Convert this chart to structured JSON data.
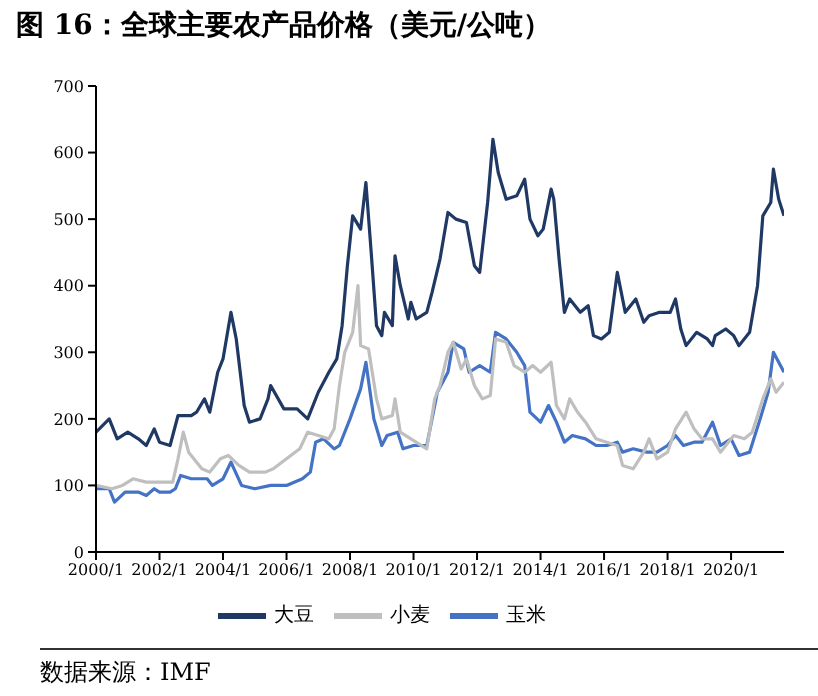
{
  "chart_data": {
    "type": "line",
    "title": "图 16：全球主要农产品价格（美元/公吨）",
    "annotations": [
      "数据来源：IMF"
    ],
    "xlim": [
      "2000-01",
      "2021-09"
    ],
    "xticks": [
      {
        "value": "2000-01",
        "label": "2000/1"
      },
      {
        "value": "2002-01",
        "label": "2002/1"
      },
      {
        "value": "2004-01",
        "label": "2004/1"
      },
      {
        "value": "2006-01",
        "label": "2006/1"
      },
      {
        "value": "2008-01",
        "label": "2008/1"
      },
      {
        "value": "2010-01",
        "label": "2010/1"
      },
      {
        "value": "2012-01",
        "label": "2012/1"
      },
      {
        "value": "2014-01",
        "label": "2014/1"
      },
      {
        "value": "2016-01",
        "label": "2016/1"
      },
      {
        "value": "2018-01",
        "label": "2018/1"
      },
      {
        "value": "2020-01",
        "label": "2020/1"
      }
    ],
    "ylim": [
      0,
      700
    ],
    "yticks": [
      0,
      100,
      200,
      300,
      400,
      500,
      600,
      700
    ],
    "grid": false,
    "legend": "bottom",
    "marker": "none",
    "line_style": "solid",
    "series": [
      {
        "name": "玉米",
        "color": "#4472c4",
        "x": [
          "2000-01",
          "2000-06",
          "2000-08",
          "2000-12",
          "2001-05",
          "2001-08",
          "2001-11",
          "2002-01",
          "2002-05",
          "2002-07",
          "2002-09",
          "2003-01",
          "2003-07",
          "2003-09",
          "2004-01",
          "2004-04",
          "2004-08",
          "2005-01",
          "2005-07",
          "2006-01",
          "2006-07",
          "2006-10",
          "2006-12",
          "2007-03",
          "2007-07",
          "2007-09",
          "2008-01",
          "2008-05",
          "2008-07",
          "2008-10",
          "2009-01",
          "2009-03",
          "2009-07",
          "2009-09",
          "2010-01",
          "2010-06",
          "2010-10",
          "2011-02",
          "2011-04",
          "2011-08",
          "2011-10",
          "2012-02",
          "2012-06",
          "2012-08",
          "2012-12",
          "2013-04",
          "2013-07",
          "2013-09",
          "2014-01",
          "2014-04",
          "2014-07",
          "2014-10",
          "2015-01",
          "2015-06",
          "2015-10",
          "2016-02",
          "2016-06",
          "2016-08",
          "2016-12",
          "2017-05",
          "2017-09",
          "2018-01",
          "2018-04",
          "2018-07",
          "2018-11",
          "2019-02",
          "2019-06",
          "2019-09",
          "2020-01",
          "2020-04",
          "2020-08",
          "2020-12",
          "2021-03",
          "2021-05",
          "2021-09"
        ],
        "values": [
          95,
          95,
          75,
          90,
          90,
          85,
          95,
          90,
          90,
          95,
          115,
          110,
          110,
          100,
          110,
          135,
          100,
          95,
          100,
          100,
          110,
          120,
          165,
          170,
          155,
          160,
          200,
          245,
          285,
          200,
          160,
          175,
          180,
          155,
          160,
          160,
          240,
          270,
          315,
          305,
          270,
          280,
          270,
          330,
          320,
          300,
          280,
          210,
          195,
          220,
          195,
          165,
          175,
          170,
          160,
          160,
          165,
          150,
          155,
          150,
          150,
          160,
          175,
          160,
          165,
          165,
          195,
          160,
          170,
          145,
          150,
          200,
          240,
          300,
          270
        ]
      },
      {
        "name": "大豆",
        "color": "#1f3864",
        "x": [
          "2000-01",
          "2000-06",
          "2000-09",
          "2001-01",
          "2001-05",
          "2001-08",
          "2001-11",
          "2002-01",
          "2002-05",
          "2002-08",
          "2003-01",
          "2003-03",
          "2003-06",
          "2003-08",
          "2003-11",
          "2004-01",
          "2004-04",
          "2004-06",
          "2004-09",
          "2004-11",
          "2005-03",
          "2005-06",
          "2005-07",
          "2005-12",
          "2006-05",
          "2006-09",
          "2007-01",
          "2007-05",
          "2007-08",
          "2007-10",
          "2007-12",
          "2008-02",
          "2008-05",
          "2008-07",
          "2008-09",
          "2008-11",
          "2009-01",
          "2009-02",
          "2009-05",
          "2009-06",
          "2009-08",
          "2009-11",
          "2009-12",
          "2010-02",
          "2010-06",
          "2010-08",
          "2010-11",
          "2011-02",
          "2011-05",
          "2011-09",
          "2011-12",
          "2012-02",
          "2012-05",
          "2012-07",
          "2012-09",
          "2012-12",
          "2013-04",
          "2013-07",
          "2013-09",
          "2013-12",
          "2014-02",
          "2014-05",
          "2014-06",
          "2014-08",
          "2014-10",
          "2014-12",
          "2015-04",
          "2015-07",
          "2015-09",
          "2015-12",
          "2016-03",
          "2016-06",
          "2016-09",
          "2017-01",
          "2017-04",
          "2017-06",
          "2017-10",
          "2018-02",
          "2018-04",
          "2018-06",
          "2018-08",
          "2018-12",
          "2019-04",
          "2019-06",
          "2019-07",
          "2019-11",
          "2020-02",
          "2020-04",
          "2020-08",
          "2020-11",
          "2021-01",
          "2021-04",
          "2021-05",
          "2021-07",
          "2021-09"
        ],
        "values": [
          180,
          200,
          170,
          180,
          170,
          160,
          185,
          165,
          160,
          205,
          205,
          210,
          230,
          210,
          270,
          290,
          360,
          320,
          220,
          195,
          200,
          230,
          250,
          215,
          215,
          200,
          240,
          270,
          290,
          340,
          430,
          505,
          485,
          555,
          450,
          340,
          325,
          360,
          340,
          445,
          400,
          350,
          375,
          350,
          360,
          390,
          440,
          510,
          500,
          495,
          430,
          420,
          525,
          620,
          570,
          530,
          535,
          560,
          500,
          475,
          485,
          545,
          530,
          440,
          360,
          380,
          360,
          370,
          325,
          320,
          330,
          420,
          360,
          380,
          345,
          355,
          360,
          360,
          380,
          335,
          310,
          330,
          320,
          310,
          325,
          335,
          325,
          310,
          330,
          400,
          505,
          525,
          575,
          530,
          505
        ]
      },
      {
        "name": "小麦",
        "color": "#bfbfbf",
        "x": [
          "2000-01",
          "2000-07",
          "2000-11",
          "2001-03",
          "2001-08",
          "2002-01",
          "2002-06",
          "2002-08",
          "2002-10",
          "2002-12",
          "2003-05",
          "2003-08",
          "2003-12",
          "2004-03",
          "2004-07",
          "2004-11",
          "2005-05",
          "2005-08",
          "2006-01",
          "2006-06",
          "2006-09",
          "2007-01",
          "2007-05",
          "2007-07",
          "2007-09",
          "2007-11",
          "2008-02",
          "2008-04",
          "2008-05",
          "2008-08",
          "2008-11",
          "2009-01",
          "2009-05",
          "2009-06",
          "2009-08",
          "2009-12",
          "2010-06",
          "2010-09",
          "2010-11",
          "2011-02",
          "2011-04",
          "2011-07",
          "2011-09",
          "2011-12",
          "2012-03",
          "2012-06",
          "2012-08",
          "2012-12",
          "2013-03",
          "2013-07",
          "2013-10",
          "2014-01",
          "2014-05",
          "2014-07",
          "2014-10",
          "2014-12",
          "2015-03",
          "2015-06",
          "2015-10",
          "2016-02",
          "2016-06",
          "2016-08",
          "2016-12",
          "2017-04",
          "2017-06",
          "2017-09",
          "2018-01",
          "2018-04",
          "2018-08",
          "2018-11",
          "2019-02",
          "2019-06",
          "2019-09",
          "2020-02",
          "2020-06",
          "2020-09",
          "2021-01",
          "2021-04",
          "2021-06",
          "2021-09"
        ],
        "values": [
          100,
          95,
          100,
          110,
          105,
          105,
          105,
          140,
          180,
          150,
          125,
          120,
          140,
          145,
          130,
          120,
          120,
          125,
          140,
          155,
          180,
          175,
          170,
          185,
          250,
          300,
          330,
          400,
          310,
          305,
          230,
          200,
          205,
          230,
          180,
          170,
          155,
          230,
          250,
          300,
          315,
          275,
          290,
          250,
          230,
          235,
          320,
          315,
          280,
          270,
          280,
          270,
          285,
          220,
          200,
          230,
          210,
          195,
          170,
          165,
          160,
          130,
          125,
          150,
          170,
          140,
          150,
          185,
          210,
          185,
          170,
          170,
          150,
          175,
          170,
          180,
          230,
          260,
          240,
          255
        ]
      }
    ]
  }
}
